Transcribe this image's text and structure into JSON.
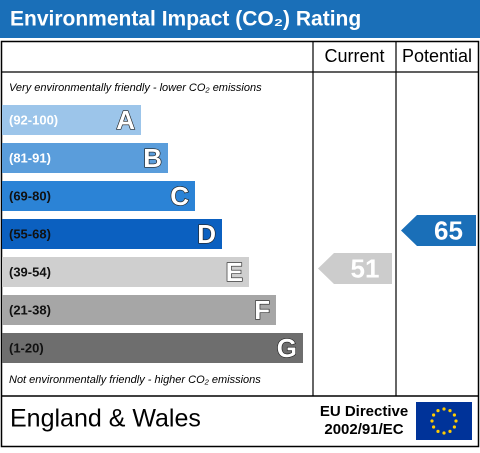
{
  "chart_data": {
    "type": "rating",
    "title": "Environmental Impact (CO₂) Rating",
    "columns": [
      "Current",
      "Potential"
    ],
    "top_note": "Very environmentally friendly - lower CO₂ emissions",
    "bottom_note": "Not environmentally friendly - higher CO₂ emissions",
    "bands": [
      {
        "range": "(92-100)",
        "letter": "A",
        "color": "#9cc5ea",
        "text_color": "#ffffff"
      },
      {
        "range": "(81-91)",
        "letter": "B",
        "color": "#5a9ddb",
        "text_color": "#ffffff"
      },
      {
        "range": "(69-80)",
        "letter": "C",
        "color": "#2b83d6",
        "text_color": "#111111"
      },
      {
        "range": "(55-68)",
        "letter": "D",
        "color": "#0b60c0",
        "text_color": "#111111"
      },
      {
        "range": "(39-54)",
        "letter": "E",
        "color": "#cfcfcf",
        "text_color": "#111111"
      },
      {
        "range": "(21-38)",
        "letter": "F",
        "color": "#a6a6a6",
        "text_color": "#111111"
      },
      {
        "range": "(1-20)",
        "letter": "G",
        "color": "#6e6e6e",
        "text_color": "#111111"
      }
    ],
    "series": [
      {
        "name": "Current",
        "color": "#cccccc",
        "values": [
          51
        ]
      },
      {
        "name": "Potential",
        "color": "#1a6fb8",
        "values": [
          65
        ]
      }
    ],
    "footer": {
      "region": "England & Wales",
      "directive_line1": "EU Directive",
      "directive_line2": "2002/91/EC"
    }
  }
}
